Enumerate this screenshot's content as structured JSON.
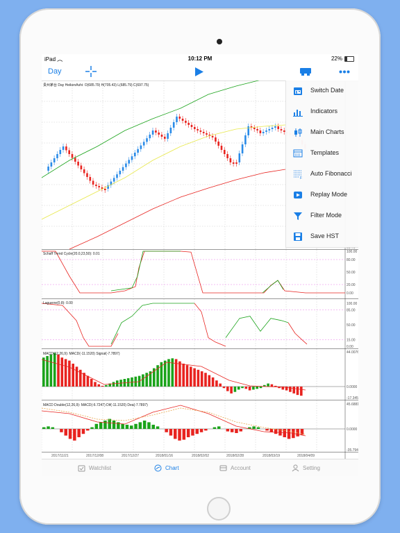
{
  "status": {
    "device": "iPad",
    "time": "10:12 PM",
    "battery": "22%"
  },
  "toolbar": {
    "period": "Day"
  },
  "menu": {
    "items": [
      {
        "label": "Switch Date",
        "icon": "calendar-icon"
      },
      {
        "label": "Indicators",
        "icon": "bar-chart-icon"
      },
      {
        "label": "Main Charts",
        "icon": "candlestick-icon"
      },
      {
        "label": "Templates",
        "icon": "template-icon"
      },
      {
        "label": "Auto Fibonacci",
        "icon": "fibonacci-icon"
      },
      {
        "label": "Replay Mode",
        "icon": "play-icon"
      },
      {
        "label": "Filter Mode",
        "icon": "filter-icon"
      },
      {
        "label": "Save HST",
        "icon": "save-icon"
      }
    ]
  },
  "panels": {
    "main": {
      "title": "贵州茅台 Day HeikenAshi: O(685.79) H(705.43) L(685.79) C(697.75)"
    },
    "stc": {
      "title": "Schaff Trend Cycle(20.0,23,50): 0.01",
      "ticks": [
        "100.00",
        "80.00",
        "50.00",
        "20.00",
        "0.00"
      ],
      "top": "99.70"
    },
    "laguerre": {
      "title": "Laguerre(0.8): 0.00",
      "ticks": [
        "100.00",
        "85.00",
        "50.00",
        "15.00",
        "0.00"
      ]
    },
    "macd": {
      "title": "MACD(12,26,9): MACD(-11.1520) Signal(-7.7897)",
      "ticks": [
        "44.0076",
        "0.0000",
        "-17.3451"
      ]
    },
    "macd2": {
      "title": "MACD Double(12,26,9): MACD(-6.7247) Dif(-11.1520) Dea(-7.7897)",
      "ticks": [
        "45.6881",
        "0.0000",
        "-35.7940"
      ]
    }
  },
  "xaxis": {
    "dates": [
      "2017/11/21",
      "2017/12/08",
      "2017/12/27",
      "2018/01/16",
      "2018/02/02",
      "2018/02/28",
      "2018/03/19",
      "2018/04/09"
    ]
  },
  "tabs": [
    {
      "label": "Watchlist",
      "icon": "watchlist-icon"
    },
    {
      "label": "Chart",
      "icon": "chart-icon"
    },
    {
      "label": "Account",
      "icon": "account-icon"
    },
    {
      "label": "Setting",
      "icon": "user-icon"
    }
  ],
  "colors": {
    "accent": "#1a7fe6",
    "up": "#2a8be8",
    "down": "#e8231f",
    "green": "#1aa31a",
    "red": "#e8231f"
  }
}
